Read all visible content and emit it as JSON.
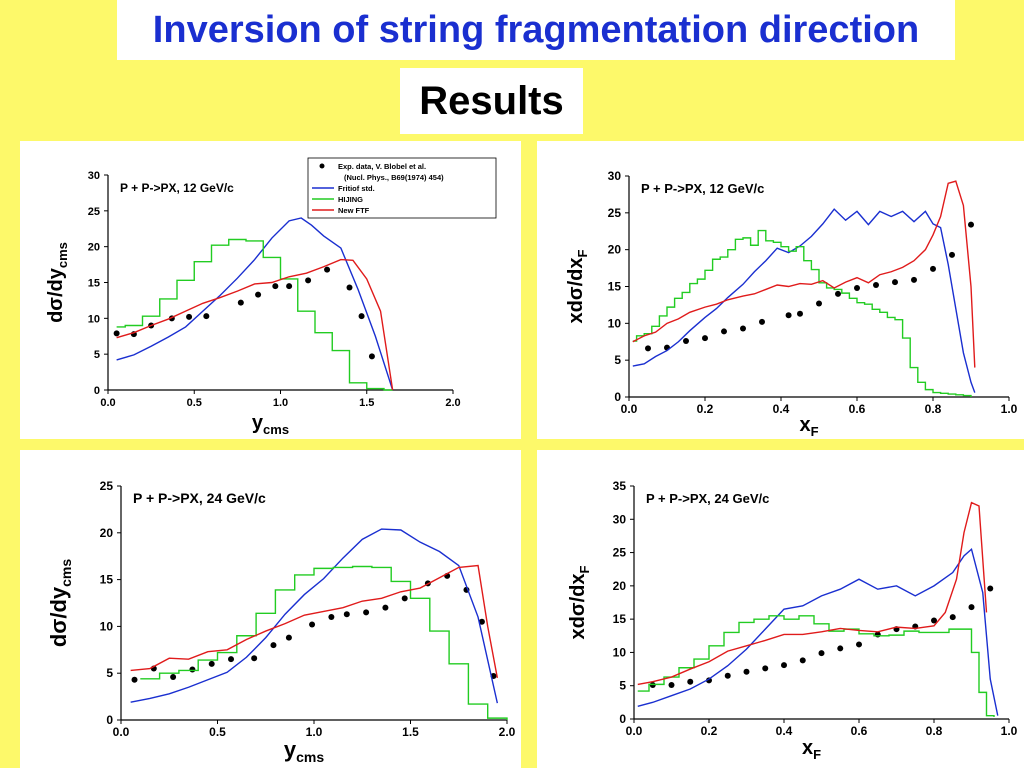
{
  "header": {
    "title": "Inversion of string fragmentation direction",
    "subtitle": "Results"
  },
  "colors": {
    "exp": "#000000",
    "fritiof": "#1a2fd0",
    "hijing": "#22cc22",
    "ftf": "#e01b1b"
  },
  "chart_data": [
    {
      "type": "line",
      "annotation": "P + P->PX, 12 GeV/c",
      "xlabel": "y",
      "xlabel_sub": "cms",
      "ylabel": "dσ/dy",
      "ylabel_sub": "cms",
      "xlim": [
        0,
        2
      ],
      "ylim": [
        0,
        30
      ],
      "xticks": [
        0,
        0.5,
        1.0,
        1.5,
        2.0
      ],
      "xtick_labels": [
        "0.0",
        "0.5",
        "1.0",
        "1.5",
        "2.0"
      ],
      "yticks": [
        0,
        5,
        10,
        15,
        20,
        25,
        30
      ],
      "ytick_labels": [
        "0",
        "5",
        "10",
        "15",
        "20",
        "25",
        "30"
      ],
      "legend_items": [
        "Exp. data, V. Blobel et al.",
        "(Nucl. Phys., B69(1974) 454)",
        "Fritiof std.",
        "HIJING",
        "New FTF"
      ],
      "legend_position": "top-right",
      "series": [
        {
          "name": "Exp. data, V. Blobel et al.",
          "kind": "scatter",
          "color": "#000000",
          "x": [
            0.05,
            0.15,
            0.25,
            0.37,
            0.47,
            0.57,
            0.77,
            0.87,
            0.97,
            1.05,
            1.16,
            1.27,
            1.4,
            1.47,
            1.53
          ],
          "y": [
            7.9,
            7.8,
            9.0,
            10.0,
            10.2,
            10.3,
            12.2,
            13.3,
            14.5,
            14.5,
            15.3,
            16.8,
            14.3,
            10.3,
            4.7
          ]
        },
        {
          "name": "Fritiof std.",
          "kind": "line",
          "color": "#1a2fd0",
          "x": [
            0.05,
            0.15,
            0.25,
            0.35,
            0.45,
            0.55,
            0.65,
            0.75,
            0.85,
            0.95,
            1.05,
            1.12,
            1.18,
            1.25,
            1.35,
            1.45,
            1.55,
            1.65
          ],
          "y": [
            4.2,
            4.9,
            6.1,
            7.4,
            8.8,
            11.0,
            13.2,
            15.6,
            18.2,
            21.2,
            23.6,
            24.0,
            23.0,
            21.5,
            19.8,
            14.0,
            7.5,
            0
          ]
        },
        {
          "name": "HIJING",
          "kind": "step",
          "color": "#22cc22",
          "x": [
            0.05,
            0.1,
            0.2,
            0.3,
            0.4,
            0.5,
            0.6,
            0.7,
            0.8,
            0.9,
            1.0,
            1.1,
            1.2,
            1.3,
            1.4,
            1.5,
            1.6,
            1.65
          ],
          "y": [
            8.8,
            9.0,
            10.3,
            12.7,
            15.3,
            17.9,
            20.2,
            21.0,
            20.8,
            18.5,
            15.5,
            11.0,
            8.0,
            5.5,
            1.0,
            0.2,
            0,
            0
          ]
        },
        {
          "name": "New FTF",
          "kind": "line",
          "color": "#e01b1b",
          "x": [
            0.05,
            0.15,
            0.25,
            0.35,
            0.45,
            0.55,
            0.65,
            0.75,
            0.85,
            0.95,
            1.05,
            1.15,
            1.25,
            1.35,
            1.42,
            1.5,
            1.58,
            1.65
          ],
          "y": [
            7.3,
            8.0,
            9.0,
            9.9,
            11.0,
            12.1,
            12.9,
            13.8,
            14.8,
            15.0,
            15.8,
            16.3,
            17.2,
            18.2,
            18.1,
            15.5,
            11.0,
            0
          ]
        }
      ]
    },
    {
      "type": "line",
      "annotation": "P + P->PX, 12 GeV/c",
      "xlabel": "x",
      "xlabel_sub": "F",
      "ylabel": "xdσ/dx",
      "ylabel_sub": "F",
      "xlim": [
        0,
        1
      ],
      "ylim": [
        0,
        30
      ],
      "xticks": [
        0,
        0.2,
        0.4,
        0.6,
        0.8,
        1.0
      ],
      "xtick_labels": [
        "0.0",
        "0.2",
        "0.4",
        "0.6",
        "0.8",
        "1.0"
      ],
      "yticks": [
        0,
        5,
        10,
        15,
        20,
        25,
        30
      ],
      "ytick_labels": [
        "0",
        "5",
        "10",
        "15",
        "20",
        "25",
        "30"
      ],
      "series": [
        {
          "name": "Exp. data",
          "kind": "scatter",
          "color": "#000000",
          "x": [
            0.05,
            0.1,
            0.15,
            0.2,
            0.25,
            0.3,
            0.35,
            0.42,
            0.45,
            0.5,
            0.55,
            0.6,
            0.65,
            0.7,
            0.75,
            0.8,
            0.85,
            0.9
          ],
          "y": [
            6.6,
            6.7,
            7.6,
            8.0,
            8.9,
            9.3,
            10.2,
            11.1,
            11.3,
            12.7,
            14.0,
            14.8,
            15.2,
            15.6,
            15.9,
            17.4,
            19.3,
            23.4
          ]
        },
        {
          "name": "Fritiof std.",
          "kind": "line",
          "color": "#1a2fd0",
          "x": [
            0.01,
            0.04,
            0.07,
            0.1,
            0.13,
            0.16,
            0.2,
            0.23,
            0.26,
            0.3,
            0.33,
            0.36,
            0.39,
            0.42,
            0.45,
            0.48,
            0.51,
            0.54,
            0.57,
            0.6,
            0.63,
            0.66,
            0.69,
            0.72,
            0.75,
            0.78,
            0.8,
            0.82,
            0.84,
            0.86,
            0.88,
            0.9,
            0.91
          ],
          "y": [
            4.2,
            4.5,
            5.5,
            6.3,
            7.5,
            9.0,
            10.8,
            12.0,
            13.5,
            15.3,
            17.0,
            18.5,
            20.2,
            19.6,
            20.5,
            21.8,
            23.5,
            25.5,
            24.0,
            25.2,
            23.4,
            25.2,
            24.5,
            25.2,
            23.8,
            25.2,
            23.5,
            23.0,
            18.0,
            12.0,
            6.0,
            2.0,
            0.6
          ]
        },
        {
          "name": "HIJING",
          "kind": "step",
          "color": "#22cc22",
          "x": [
            0.01,
            0.02,
            0.04,
            0.06,
            0.08,
            0.1,
            0.12,
            0.14,
            0.16,
            0.18,
            0.2,
            0.22,
            0.24,
            0.26,
            0.28,
            0.3,
            0.32,
            0.34,
            0.36,
            0.38,
            0.4,
            0.42,
            0.44,
            0.46,
            0.48,
            0.5,
            0.52,
            0.54,
            0.56,
            0.58,
            0.6,
            0.62,
            0.64,
            0.66,
            0.68,
            0.7,
            0.72,
            0.74,
            0.76,
            0.78,
            0.8,
            0.82,
            0.84,
            0.86,
            0.88,
            0.9
          ],
          "y": [
            7.6,
            8.3,
            8.6,
            9.6,
            11.0,
            12.2,
            13.4,
            14.2,
            15.4,
            16.0,
            17.2,
            18.7,
            19.0,
            20.0,
            21.4,
            21.6,
            20.6,
            22.6,
            21.2,
            21.0,
            20.4,
            19.8,
            20.4,
            18.5,
            17.3,
            15.5,
            14.8,
            14.6,
            14.1,
            13.4,
            12.8,
            12.6,
            11.9,
            11.5,
            10.8,
            10.5,
            8.0,
            4.0,
            2.0,
            1.0,
            0.6,
            0.5,
            0.4,
            0.3,
            0.2,
            0
          ]
        },
        {
          "name": "New FTF",
          "kind": "line",
          "color": "#e01b1b",
          "x": [
            0.01,
            0.04,
            0.07,
            0.1,
            0.13,
            0.16,
            0.2,
            0.23,
            0.26,
            0.3,
            0.33,
            0.36,
            0.39,
            0.42,
            0.45,
            0.48,
            0.51,
            0.54,
            0.57,
            0.6,
            0.63,
            0.66,
            0.69,
            0.72,
            0.75,
            0.78,
            0.8,
            0.82,
            0.84,
            0.86,
            0.88,
            0.9,
            0.91
          ],
          "y": [
            7.5,
            8.3,
            8.8,
            10.0,
            10.6,
            11.5,
            12.2,
            12.6,
            13.2,
            13.7,
            14.0,
            14.6,
            15.2,
            15.0,
            15.4,
            15.3,
            15.8,
            14.8,
            15.6,
            16.2,
            15.5,
            16.6,
            17.0,
            17.6,
            18.5,
            20.0,
            22.0,
            24.5,
            29.0,
            29.3,
            26.0,
            15.0,
            4.0
          ]
        }
      ]
    },
    {
      "type": "line",
      "annotation": "P + P->PX, 24 GeV/c",
      "xlabel": "y",
      "xlabel_sub": "cms",
      "ylabel": "dσ/dy",
      "ylabel_sub": "cms",
      "xlim": [
        0,
        2
      ],
      "ylim": [
        0,
        25
      ],
      "xticks": [
        0,
        0.5,
        1.0,
        1.5,
        2.0
      ],
      "xtick_labels": [
        "0.0",
        "0.5",
        "1.0",
        "1.5",
        "2.0"
      ],
      "yticks": [
        0,
        5,
        10,
        15,
        20,
        25
      ],
      "ytick_labels": [
        "0",
        "5",
        "10",
        "15",
        "20",
        "25"
      ],
      "series": [
        {
          "name": "Exp. data",
          "kind": "scatter",
          "color": "#000000",
          "x": [
            0.07,
            0.17,
            0.27,
            0.37,
            0.47,
            0.57,
            0.69,
            0.79,
            0.87,
            0.99,
            1.09,
            1.17,
            1.27,
            1.37,
            1.47,
            1.59,
            1.69,
            1.79,
            1.87,
            1.93
          ],
          "y": [
            4.3,
            5.5,
            4.6,
            5.4,
            6.0,
            6.5,
            6.6,
            8.0,
            8.8,
            10.2,
            11.0,
            11.3,
            11.5,
            12.0,
            13.0,
            14.6,
            15.4,
            13.9,
            10.5,
            4.7
          ]
        },
        {
          "name": "Fritiof std.",
          "kind": "line",
          "color": "#1a2fd0",
          "x": [
            0.05,
            0.15,
            0.25,
            0.35,
            0.45,
            0.55,
            0.65,
            0.75,
            0.85,
            0.95,
            1.05,
            1.15,
            1.25,
            1.35,
            1.45,
            1.55,
            1.65,
            1.75,
            1.85,
            1.95
          ],
          "y": [
            1.9,
            2.3,
            2.8,
            3.5,
            4.3,
            5.1,
            6.7,
            8.8,
            11.3,
            13.4,
            15.1,
            17.3,
            19.3,
            20.4,
            20.3,
            19.0,
            18.0,
            16.5,
            11.0,
            1.8
          ]
        },
        {
          "name": "HIJING",
          "kind": "step",
          "color": "#22cc22",
          "x": [
            0.1,
            0.2,
            0.3,
            0.4,
            0.5,
            0.6,
            0.7,
            0.8,
            0.9,
            1.0,
            1.1,
            1.2,
            1.3,
            1.4,
            1.5,
            1.6,
            1.7,
            1.8,
            1.9,
            2.0
          ],
          "y": [
            4.4,
            5.0,
            5.3,
            6.4,
            7.2,
            9.0,
            11.4,
            13.9,
            15.5,
            16.2,
            16.3,
            16.4,
            16.3,
            14.8,
            13.0,
            9.5,
            6.0,
            1.7,
            0.2,
            0
          ]
        },
        {
          "name": "New FTF",
          "kind": "line",
          "color": "#e01b1b",
          "x": [
            0.05,
            0.15,
            0.25,
            0.35,
            0.45,
            0.55,
            0.65,
            0.75,
            0.85,
            0.95,
            1.05,
            1.15,
            1.25,
            1.35,
            1.45,
            1.55,
            1.65,
            1.75,
            1.85,
            1.9,
            1.95
          ],
          "y": [
            5.3,
            5.5,
            6.6,
            6.5,
            7.3,
            7.5,
            8.6,
            9.5,
            10.3,
            11.2,
            11.6,
            12.0,
            12.7,
            13.0,
            13.7,
            14.1,
            15.2,
            16.3,
            16.5,
            10.0,
            4.5
          ]
        }
      ]
    },
    {
      "type": "line",
      "annotation": "P + P->PX, 24 GeV/c",
      "xlabel": "x",
      "xlabel_sub": "F",
      "ylabel": "xdσ/dx",
      "ylabel_sub": "F",
      "xlim": [
        0,
        1
      ],
      "ylim": [
        0,
        35
      ],
      "xticks": [
        0,
        0.2,
        0.4,
        0.6,
        0.8,
        1.0
      ],
      "xtick_labels": [
        "0.0",
        "0.2",
        "0.4",
        "0.6",
        "0.8",
        "1.0"
      ],
      "yticks": [
        0,
        5,
        10,
        15,
        20,
        25,
        30,
        35
      ],
      "ytick_labels": [
        "0",
        "5",
        "10",
        "15",
        "20",
        "25",
        "30",
        "35"
      ],
      "series": [
        {
          "name": "Exp. data",
          "kind": "scatter",
          "color": "#000000",
          "x": [
            0.05,
            0.1,
            0.15,
            0.2,
            0.25,
            0.3,
            0.35,
            0.4,
            0.45,
            0.5,
            0.55,
            0.6,
            0.65,
            0.7,
            0.75,
            0.8,
            0.85,
            0.9,
            0.95
          ],
          "y": [
            5.1,
            5.1,
            5.6,
            5.8,
            6.5,
            7.1,
            7.6,
            8.1,
            8.8,
            9.9,
            10.6,
            11.2,
            12.7,
            13.5,
            13.9,
            14.8,
            15.3,
            16.8,
            19.6
          ]
        },
        {
          "name": "Fritiof std.",
          "kind": "line",
          "color": "#1a2fd0",
          "x": [
            0.01,
            0.05,
            0.1,
            0.15,
            0.2,
            0.25,
            0.3,
            0.35,
            0.4,
            0.45,
            0.5,
            0.55,
            0.6,
            0.65,
            0.7,
            0.75,
            0.8,
            0.85,
            0.88,
            0.9,
            0.93,
            0.95,
            0.97
          ],
          "y": [
            1.9,
            2.5,
            3.5,
            4.5,
            6.0,
            8.0,
            10.5,
            13.5,
            16.5,
            17.0,
            18.5,
            19.5,
            21.0,
            19.5,
            20.0,
            18.5,
            20.0,
            22.0,
            24.5,
            25.5,
            19.0,
            6.0,
            0.5
          ]
        },
        {
          "name": "HIJING",
          "kind": "step",
          "color": "#22cc22",
          "x": [
            0.01,
            0.04,
            0.08,
            0.12,
            0.16,
            0.2,
            0.24,
            0.28,
            0.32,
            0.36,
            0.4,
            0.44,
            0.48,
            0.52,
            0.56,
            0.6,
            0.64,
            0.68,
            0.72,
            0.76,
            0.8,
            0.84,
            0.88,
            0.9,
            0.92,
            0.94,
            0.96
          ],
          "y": [
            4.2,
            5.2,
            6.3,
            7.7,
            9.0,
            11.0,
            13.0,
            14.5,
            15.0,
            15.5,
            15.0,
            15.5,
            14.3,
            13.2,
            13.5,
            12.8,
            12.5,
            12.6,
            13.2,
            13.0,
            13.0,
            13.5,
            13.5,
            10.0,
            4.0,
            0.5,
            0.3
          ]
        },
        {
          "name": "New FTF",
          "kind": "line",
          "color": "#e01b1b",
          "x": [
            0.01,
            0.05,
            0.1,
            0.15,
            0.2,
            0.25,
            0.3,
            0.35,
            0.4,
            0.45,
            0.5,
            0.55,
            0.6,
            0.65,
            0.7,
            0.75,
            0.8,
            0.83,
            0.86,
            0.88,
            0.9,
            0.92,
            0.94
          ],
          "y": [
            5.2,
            5.6,
            6.3,
            7.5,
            8.6,
            10.2,
            11.0,
            11.8,
            12.7,
            12.7,
            13.1,
            13.6,
            13.3,
            13.1,
            13.8,
            13.6,
            14.0,
            16.0,
            21.0,
            28.0,
            32.5,
            32.0,
            16.0
          ]
        }
      ]
    }
  ]
}
